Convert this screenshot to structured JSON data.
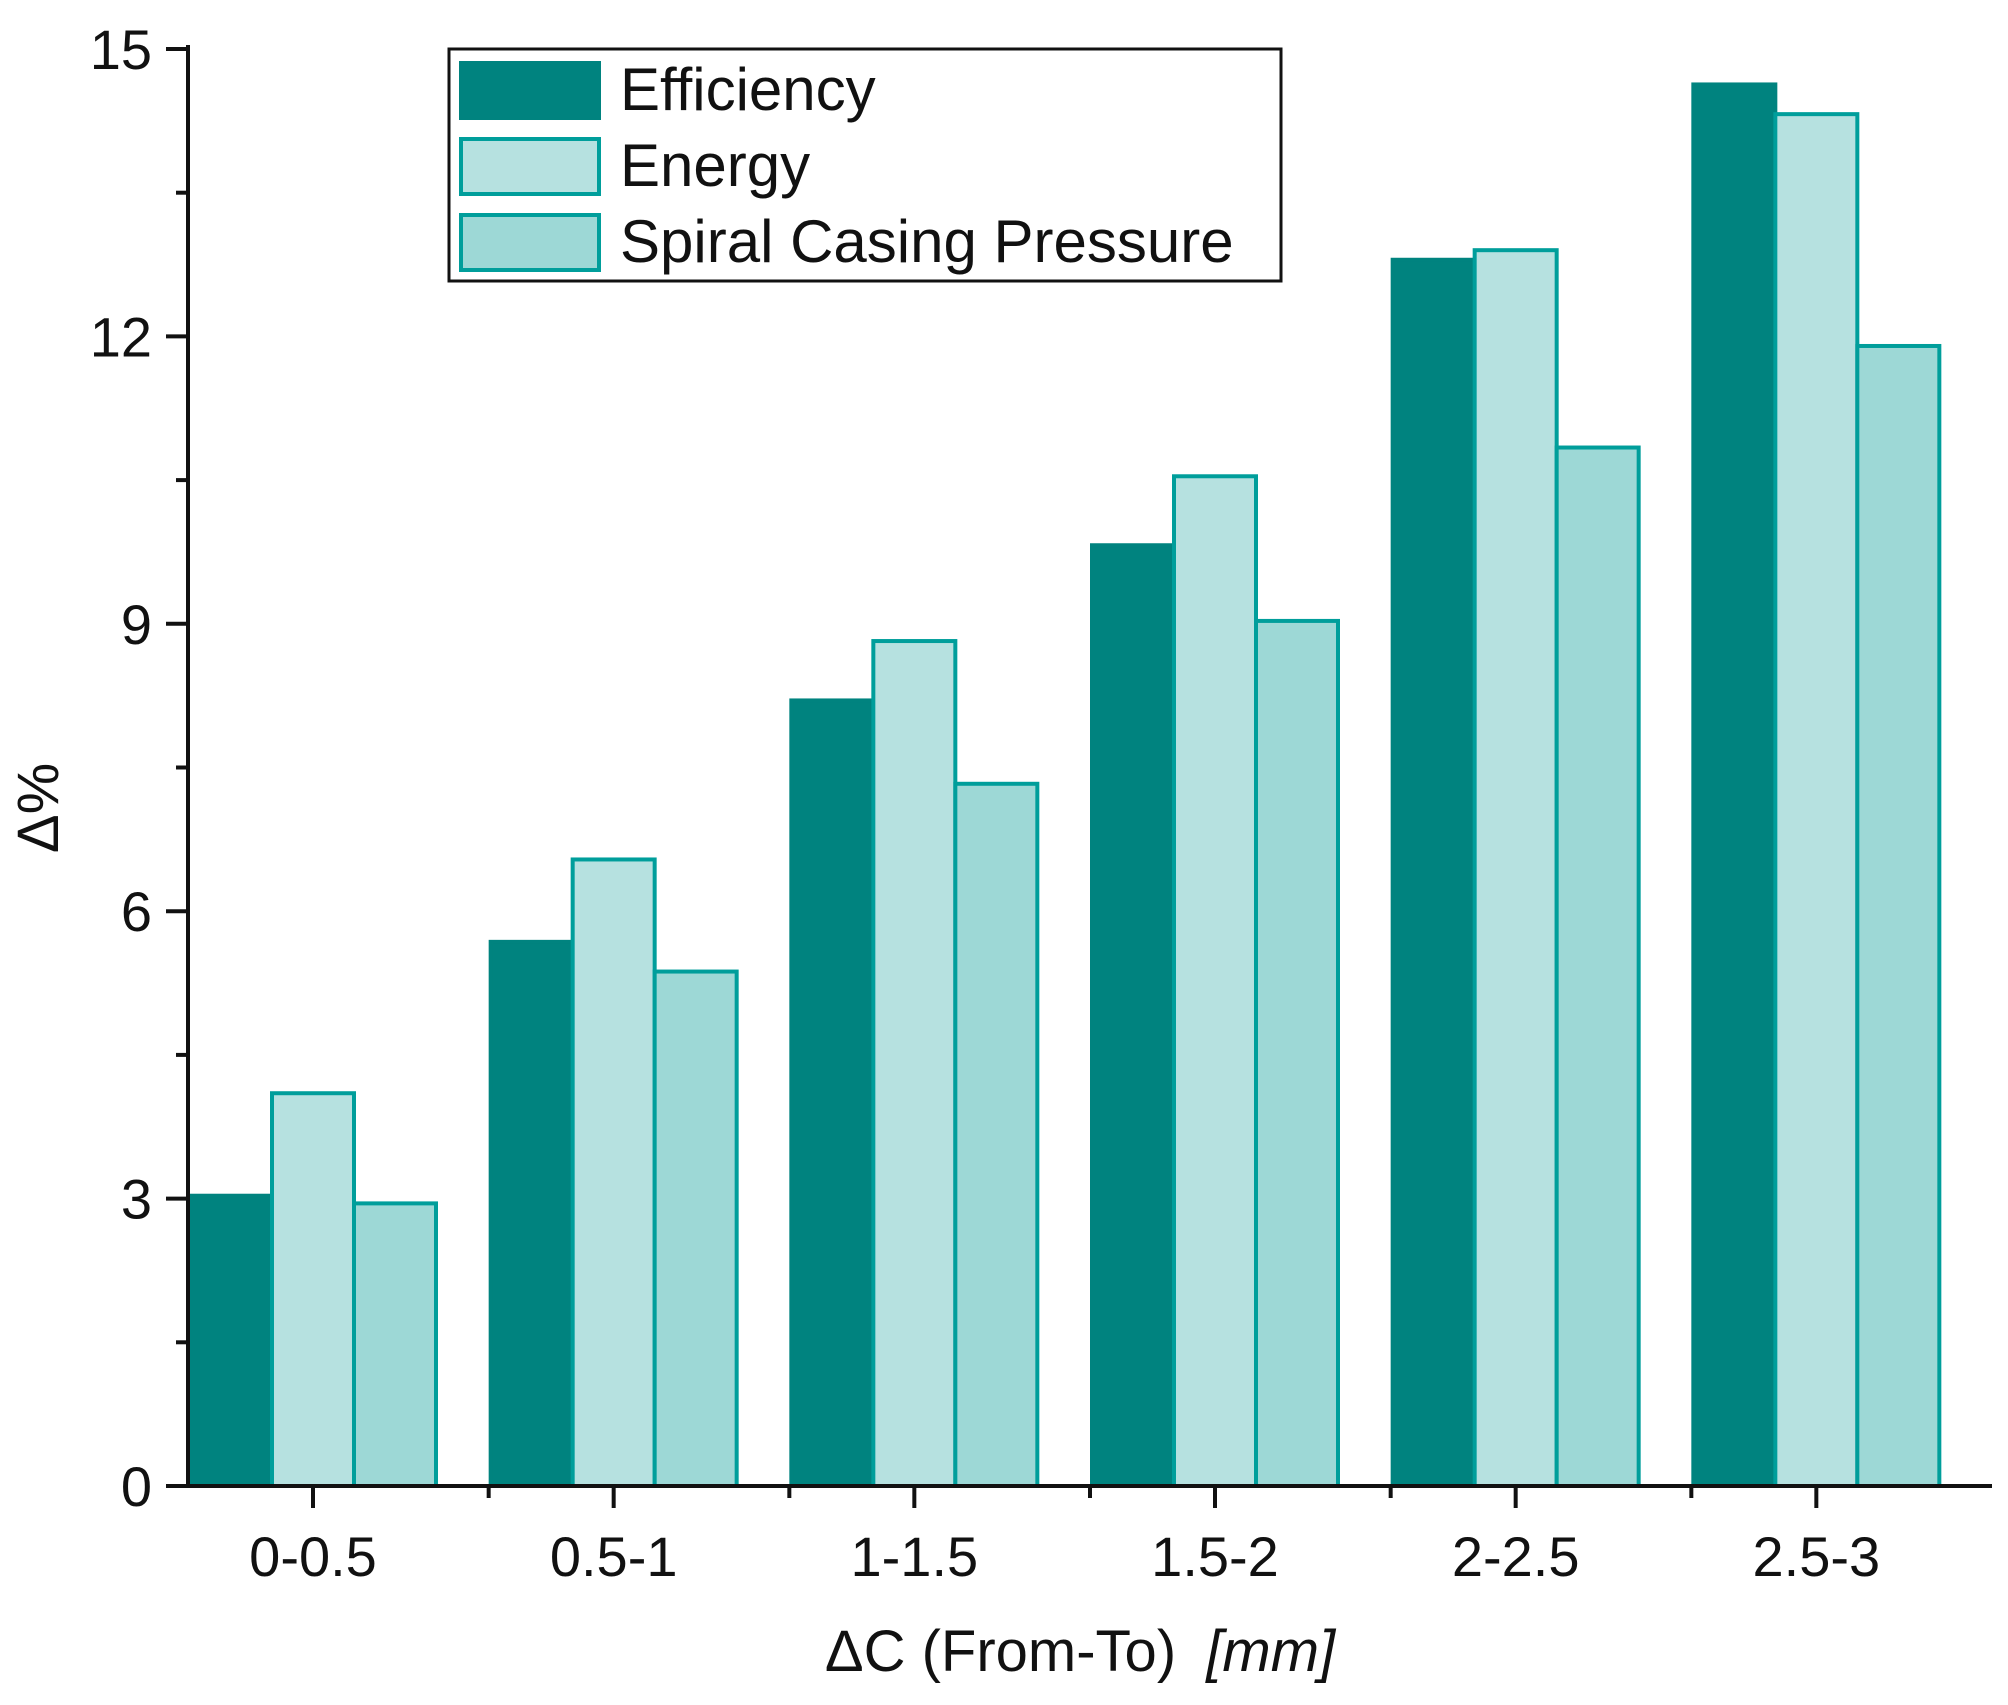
{
  "chart_data": {
    "type": "bar",
    "title": "",
    "xlabel": "ΔC (From-To)",
    "xlabel_unit": "[mm]",
    "ylabel": "Δ%",
    "categories": [
      "0-0.5",
      "0.5-1",
      "1-1.5",
      "1.5-2",
      "2-2.5",
      "2.5-3"
    ],
    "series": [
      {
        "name": "Efficiency",
        "values": [
          3.03,
          5.68,
          8.2,
          9.82,
          12.8,
          14.63
        ],
        "color": "#00837f",
        "border": "#00837f"
      },
      {
        "name": "Energy",
        "values": [
          4.1,
          6.54,
          8.82,
          10.54,
          12.9,
          14.32
        ],
        "color": "#b6e1e0",
        "border": "#009e9b"
      },
      {
        "name": "Spiral Casing Pressure",
        "values": [
          2.95,
          5.37,
          7.33,
          9.03,
          10.84,
          11.9
        ],
        "color": "#9dd8d6",
        "border": "#009e9b"
      }
    ],
    "ylim": [
      0,
      15
    ],
    "yticks": [
      0,
      3,
      6,
      9,
      12,
      15
    ],
    "grid": false,
    "legend_position": "top-left"
  }
}
